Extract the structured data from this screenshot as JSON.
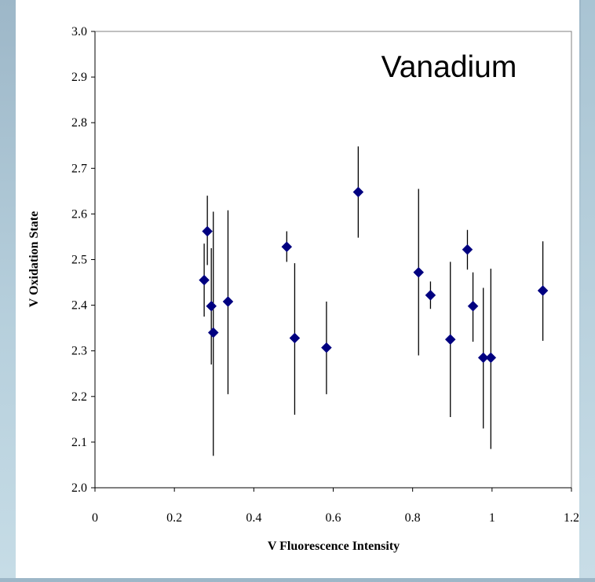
{
  "chart_data": {
    "type": "scatter",
    "title": "",
    "annotation": "Vanadium",
    "xlabel": "V Fluorescence Intensity",
    "ylabel": "V Oxidation State",
    "xlim": [
      0,
      1.2
    ],
    "ylim": [
      2.0,
      3.0
    ],
    "x_ticks": [
      "0",
      "0.2",
      "0.4",
      "0.6",
      "0.8",
      "1",
      "1.2"
    ],
    "y_ticks": [
      "2.0",
      "2.1",
      "2.2",
      "2.3",
      "2.4",
      "2.5",
      "2.6",
      "2.7",
      "2.8",
      "2.9",
      "3.0"
    ],
    "grid": false,
    "legend": "none",
    "marker_color": "#000080",
    "marker": "diamond",
    "points": [
      {
        "x": 0.275,
        "y": 2.455,
        "err_low": 2.375,
        "err_high": 2.535
      },
      {
        "x": 0.283,
        "y": 2.562,
        "err_low": 2.488,
        "err_high": 2.64
      },
      {
        "x": 0.293,
        "y": 2.398,
        "err_low": 2.27,
        "err_high": 2.525
      },
      {
        "x": 0.298,
        "y": 2.34,
        "err_low": 2.07,
        "err_high": 2.605
      },
      {
        "x": 0.335,
        "y": 2.408,
        "err_low": 2.205,
        "err_high": 2.608
      },
      {
        "x": 0.483,
        "y": 2.528,
        "err_low": 2.495,
        "err_high": 2.562
      },
      {
        "x": 0.503,
        "y": 2.328,
        "err_low": 2.16,
        "err_high": 2.492
      },
      {
        "x": 0.583,
        "y": 2.307,
        "err_low": 2.205,
        "err_high": 2.408
      },
      {
        "x": 0.663,
        "y": 2.648,
        "err_low": 2.548,
        "err_high": 2.748
      },
      {
        "x": 0.815,
        "y": 2.472,
        "err_low": 2.29,
        "err_high": 2.655
      },
      {
        "x": 0.845,
        "y": 2.422,
        "err_low": 2.392,
        "err_high": 2.452
      },
      {
        "x": 0.895,
        "y": 2.325,
        "err_low": 2.155,
        "err_high": 2.495
      },
      {
        "x": 0.938,
        "y": 2.522,
        "err_low": 2.478,
        "err_high": 2.565
      },
      {
        "x": 0.952,
        "y": 2.398,
        "err_low": 2.32,
        "err_high": 2.472
      },
      {
        "x": 0.978,
        "y": 2.285,
        "err_low": 2.13,
        "err_high": 2.438
      },
      {
        "x": 0.997,
        "y": 2.285,
        "err_low": 2.085,
        "err_high": 2.48
      },
      {
        "x": 1.128,
        "y": 2.432,
        "err_low": 2.322,
        "err_high": 2.54
      }
    ]
  }
}
